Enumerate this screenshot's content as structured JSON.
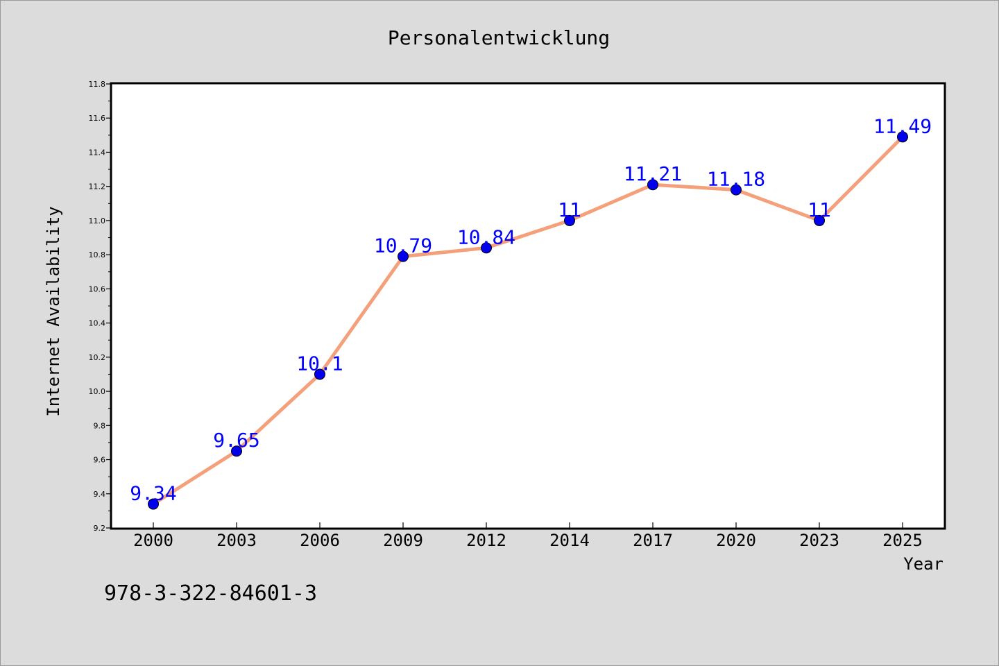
{
  "chart_data": {
    "type": "line",
    "title": "Personalentwicklung",
    "xlabel": "Year",
    "ylabel": "Internet Availability",
    "categories": [
      "2000",
      "2003",
      "2006",
      "2009",
      "2012",
      "2014",
      "2017",
      "2020",
      "2023",
      "2025"
    ],
    "series": [
      {
        "values": [
          9.34,
          9.65,
          10.1,
          10.79,
          10.84,
          11,
          11.21,
          11.18,
          11,
          11.49
        ],
        "point_labels": [
          "9.34",
          "9.65",
          "10.1",
          "10.79",
          "10.84",
          "11",
          "11.21",
          "11.18",
          "11",
          "11.49"
        ],
        "line_color": "#f4a07a",
        "marker_color": "#0000ee",
        "label_color": "#0000ff"
      }
    ],
    "ylim": [
      9.2,
      11.8
    ],
    "yticks": [
      "9.2",
      "9.4",
      "9.6",
      "9.8",
      "10.0",
      "10.2",
      "10.4",
      "10.6",
      "10.8",
      "11.0",
      "11.2",
      "11.4",
      "11.6",
      "11.8"
    ],
    "grid": false,
    "legend": "none"
  },
  "footer_text": "978-3-322-84601-3",
  "colors": {
    "background": "#dcdcdc",
    "plot_background": "#ffffff",
    "axis": "#000000"
  }
}
